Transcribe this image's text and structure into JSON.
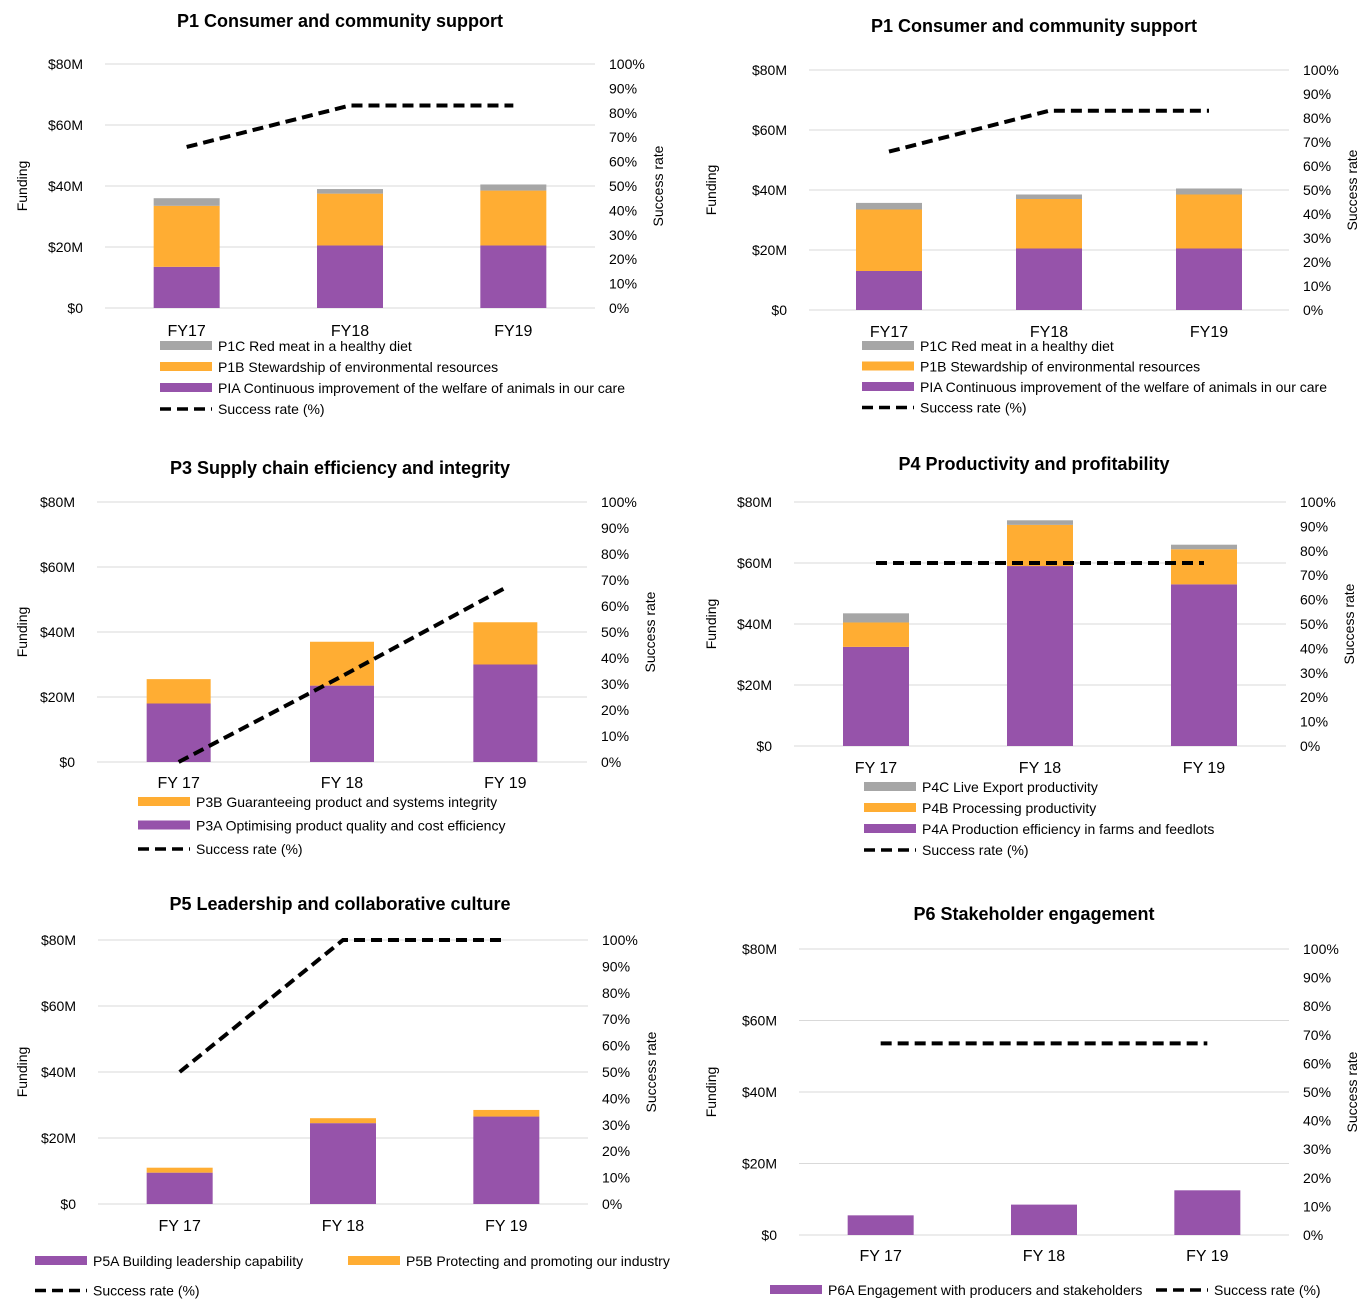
{
  "colors": {
    "purple": "#9653AA",
    "orange": "#FFAD33",
    "gray": "#A6A6A6",
    "line": "#000000",
    "grid": "#D9D9D9",
    "text": "#000000"
  },
  "axis_labels": {
    "left": "Funding",
    "right": "Success rate"
  },
  "chart_data": [
    {
      "type": "bar",
      "stacked": true,
      "title": "P1 Consumer and community support",
      "categories": [
        "FY17",
        "FY18",
        "FY19"
      ],
      "series": [
        {
          "name": "PIA Continuous improvement of the welfare of animals in our care",
          "color": "purple",
          "values": [
            13.5,
            20.5,
            20.5
          ]
        },
        {
          "name": "P1B Stewardship of environmental resources",
          "color": "orange",
          "values": [
            20,
            17,
            18
          ]
        },
        {
          "name": "P1C Red meat in a healthy diet",
          "color": "gray",
          "values": [
            2.5,
            1.5,
            2
          ]
        }
      ],
      "line": {
        "name": "Success rate (%)",
        "values": [
          66,
          83,
          83
        ]
      },
      "ylabel": "Funding",
      "y2label": "Success rate",
      "ylim": [
        0,
        80
      ],
      "yticks": [
        "$0",
        "$20M",
        "$40M",
        "$60M",
        "$80M"
      ],
      "y2lim": [
        0,
        100
      ],
      "y2ticks": [
        "0%",
        "10%",
        "20%",
        "30%",
        "40%",
        "50%",
        "60%",
        "70%",
        "80%",
        "90%",
        "100%"
      ],
      "legend_order": [
        2,
        1,
        0,
        "line"
      ],
      "legend_placement": "bottom"
    },
    {
      "type": "bar",
      "stacked": true,
      "title": "P1 Consumer and community support",
      "categories": [
        "FY17",
        "FY18",
        "FY19"
      ],
      "series": [
        {
          "name": "PIA Continuous improvement of the welfare of animals in our care",
          "color": "purple",
          "values": [
            13,
            20.5,
            20.5
          ]
        },
        {
          "name": "P1B Stewardship of environmental resources",
          "color": "orange",
          "values": [
            20.5,
            16.5,
            18
          ]
        },
        {
          "name": "P1C Red meat in a healthy diet",
          "color": "gray",
          "values": [
            2.2,
            1.5,
            2
          ]
        }
      ],
      "line": {
        "name": "Success rate (%)",
        "values": [
          66,
          83,
          83
        ]
      },
      "ylabel": "Funding",
      "y2label": "Success rate",
      "ylim": [
        0,
        80
      ],
      "yticks": [
        "$0",
        "$20M",
        "$40M",
        "$60M",
        "$80M"
      ],
      "y2lim": [
        0,
        100
      ],
      "y2ticks": [
        "0%",
        "10%",
        "20%",
        "30%",
        "40%",
        "50%",
        "60%",
        "70%",
        "80%",
        "90%",
        "100%"
      ],
      "legend_order": [
        2,
        1,
        0,
        "line"
      ],
      "legend_placement": "bottom"
    },
    {
      "type": "bar",
      "stacked": true,
      "title": "P3 Supply chain efficiency and integrity",
      "categories": [
        "FY 17",
        "FY 18",
        "FY 19"
      ],
      "series": [
        {
          "name": "P3A Optimising product quality and cost efficiency",
          "color": "purple",
          "values": [
            18,
            23.5,
            30
          ]
        },
        {
          "name": "P3B Guaranteeing product and systems integrity",
          "color": "orange",
          "values": [
            7.5,
            13.5,
            13
          ]
        }
      ],
      "line": {
        "name": "Success rate (%)",
        "values": [
          0,
          33,
          67
        ]
      },
      "ylabel": "Funding",
      "y2label": "Success rate",
      "ylim": [
        0,
        80
      ],
      "yticks": [
        "$0",
        "$20M",
        "$40M",
        "$60M",
        "$80M"
      ],
      "y2lim": [
        0,
        100
      ],
      "y2ticks": [
        "0%",
        "10%",
        "20%",
        "30%",
        "40%",
        "50%",
        "60%",
        "70%",
        "80%",
        "90%",
        "100%"
      ],
      "legend_order": [
        1,
        0,
        "line"
      ],
      "legend_placement": "bottom"
    },
    {
      "type": "bar",
      "stacked": true,
      "title": "P4 Productivity and profitability",
      "categories": [
        "FY 17",
        "FY 18",
        "FY 19"
      ],
      "series": [
        {
          "name": "P4A Production efficiency in farms and feedlots",
          "color": "purple",
          "values": [
            32.5,
            59,
            53
          ]
        },
        {
          "name": "P4B Processing productivity",
          "color": "orange",
          "values": [
            8,
            13.5,
            11.5
          ]
        },
        {
          "name": "P4C Live Export productivity",
          "color": "gray",
          "values": [
            3,
            1.5,
            1.5
          ]
        }
      ],
      "line": {
        "name": "Success rate (%)",
        "values": [
          75,
          75,
          75
        ]
      },
      "ylabel": "Funding",
      "y2label": "Success rate",
      "ylim": [
        0,
        80
      ],
      "yticks": [
        "$0",
        "$20M",
        "$40M",
        "$60M",
        "$80M"
      ],
      "y2lim": [
        0,
        100
      ],
      "y2ticks": [
        "0%",
        "10%",
        "20%",
        "30%",
        "40%",
        "50%",
        "60%",
        "70%",
        "80%",
        "90%",
        "100%"
      ],
      "legend_order": [
        2,
        1,
        0,
        "line"
      ],
      "legend_placement": "bottom"
    },
    {
      "type": "bar",
      "stacked": true,
      "title": "P5 Leadership and collaborative culture",
      "categories": [
        "FY 17",
        "FY 18",
        "FY 19"
      ],
      "series": [
        {
          "name": "P5A Building leadership capability",
          "color": "purple",
          "values": [
            9.5,
            24.5,
            26.5
          ]
        },
        {
          "name": "P5B Protecting and promoting our industry",
          "color": "orange",
          "values": [
            1.5,
            1.5,
            2
          ]
        }
      ],
      "line": {
        "name": "Success rate (%)",
        "values": [
          50,
          100,
          100
        ]
      },
      "ylabel": "Funding",
      "y2label": "Success rate",
      "ylim": [
        0,
        80
      ],
      "yticks": [
        "$0",
        "$20M",
        "$40M",
        "$60M",
        "$80M"
      ],
      "y2lim": [
        0,
        100
      ],
      "y2ticks": [
        "0%",
        "10%",
        "20%",
        "30%",
        "40%",
        "50%",
        "60%",
        "70%",
        "80%",
        "90%",
        "100%"
      ],
      "legend_order": [
        0,
        1,
        "line"
      ],
      "legend_placement": "bottom"
    },
    {
      "type": "bar",
      "stacked": true,
      "title": "P6 Stakeholder engagement",
      "categories": [
        "FY 17",
        "FY 18",
        "FY 19"
      ],
      "series": [
        {
          "name": "P6A Engagement with producers and stakeholders",
          "color": "purple",
          "values": [
            5.5,
            8.5,
            12.5
          ]
        }
      ],
      "line": {
        "name": "Success rate (%)",
        "values": [
          67,
          67,
          67
        ]
      },
      "ylabel": "Funding",
      "y2label": "Success rate",
      "ylim": [
        0,
        80
      ],
      "yticks": [
        "$0",
        "$20M",
        "$40M",
        "$60M",
        "$80M"
      ],
      "y2lim": [
        0,
        100
      ],
      "y2ticks": [
        "0%",
        "10%",
        "20%",
        "30%",
        "40%",
        "50%",
        "60%",
        "70%",
        "80%",
        "90%",
        "100%"
      ],
      "legend_order": [
        0,
        "line"
      ],
      "legend_placement": "bottom"
    }
  ]
}
